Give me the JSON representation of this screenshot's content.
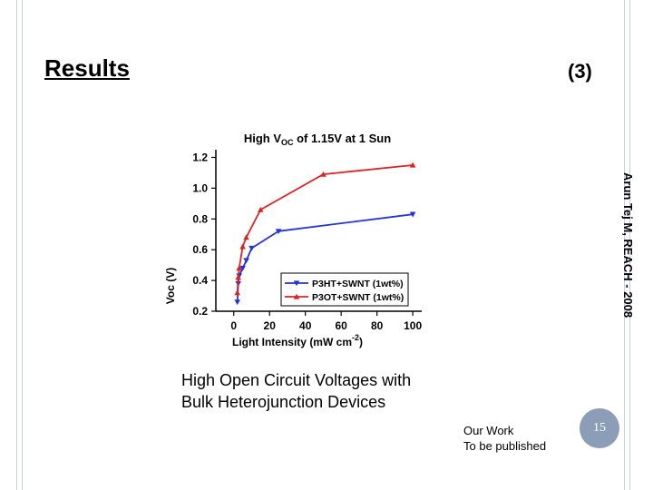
{
  "slide": {
    "title": "Results",
    "section_label": "(3)",
    "side_text": "Arun Tej M, REACH - 2008",
    "caption_line1": "High Open Circuit Voltages with",
    "caption_line2": "Bulk Heterojunction Devices",
    "note_line1": "Our Work",
    "note_line2": "To be published",
    "page_number": "15",
    "badge_color": "#8c9db8"
  },
  "chart_data": {
    "type": "line",
    "title_pre": "High V",
    "title_sub": "OC",
    "title_post": " of 1.15V at 1 Sun",
    "ylabel": "Voc (V)",
    "xlabel_pre": "Light Intensity (mW cm",
    "xlabel_sup": "-2",
    "xlabel_post": ")",
    "xlim": [
      -10,
      105
    ],
    "ylim": [
      0.2,
      1.25
    ],
    "xticks": [
      "0",
      "20",
      "40",
      "60",
      "80",
      "100"
    ],
    "yticks": [
      "0.2",
      "0.4",
      "0.6",
      "0.8",
      "1.0",
      "1.2"
    ],
    "legend_position": "lower-right",
    "series": [
      {
        "name": "P3HT+SWNT (1wt%)",
        "color": "#2233dd",
        "marker": "triangle-down",
        "x": [
          2,
          2.5,
          3,
          5,
          7,
          10,
          25,
          100
        ],
        "y": [
          0.26,
          0.38,
          0.43,
          0.48,
          0.53,
          0.61,
          0.72,
          0.83
        ]
      },
      {
        "name": "P3OT+SWNT (1wt%)",
        "color": "#dd2222",
        "marker": "triangle-up",
        "x": [
          2,
          2.5,
          3,
          5,
          7,
          15,
          50,
          100
        ],
        "y": [
          0.32,
          0.42,
          0.48,
          0.62,
          0.68,
          0.86,
          1.09,
          1.15
        ]
      }
    ]
  }
}
